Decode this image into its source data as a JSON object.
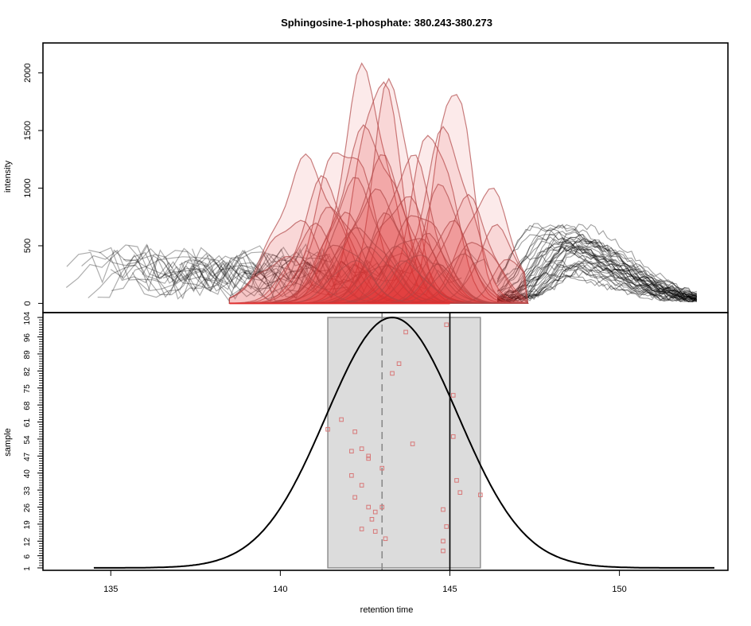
{
  "chart_data": {
    "type": "line",
    "title": "Sphingosine-1-phosphate: 380.243-380.273",
    "xlabel": "retention time",
    "xlim": [
      133,
      153.2
    ],
    "x_ticks": [
      135,
      140,
      145,
      150
    ],
    "top_panel": {
      "type": "area",
      "ylabel": "intensity",
      "ylim": [
        -80,
        2260
      ],
      "y_ticks": [
        0,
        500,
        1000,
        1500,
        2000
      ],
      "colors": {
        "background_traces": "#000000",
        "peak_fill": "#e03030",
        "peak_line": "#b04848"
      },
      "peak_range": [
        138.5,
        147.3
      ],
      "background_noise_level": 250,
      "late_cluster": {
        "center": 148.2,
        "max_intensity": 600,
        "n_traces": 40
      },
      "peak_series_count": 40,
      "peaks": [
        {
          "center": 142.5,
          "max": 2120,
          "width": 0.7
        },
        {
          "center": 142.9,
          "max": 2160,
          "width": 0.6
        },
        {
          "center": 145.1,
          "max": 2150,
          "width": 0.5
        },
        {
          "center": 143.3,
          "max": 2080,
          "width": 0.55
        },
        {
          "center": 144.5,
          "max": 1640,
          "width": 0.6
        },
        {
          "center": 141.9,
          "max": 1510,
          "width": 0.8
        },
        {
          "center": 142.6,
          "max": 1580,
          "width": 0.9
        },
        {
          "center": 144.9,
          "max": 1570,
          "width": 0.7
        },
        {
          "center": 140.8,
          "max": 1300,
          "width": 0.9
        },
        {
          "center": 143.0,
          "max": 1300,
          "width": 0.8
        },
        {
          "center": 143.8,
          "max": 1350,
          "width": 0.7
        },
        {
          "center": 146.1,
          "max": 1050,
          "width": 0.7
        },
        {
          "center": 141.3,
          "max": 1120,
          "width": 0.7
        },
        {
          "center": 142.2,
          "max": 1100,
          "width": 0.8
        },
        {
          "center": 144.8,
          "max": 1080,
          "width": 0.6
        },
        {
          "center": 145.5,
          "max": 950,
          "width": 0.7
        },
        {
          "center": 142.8,
          "max": 1000,
          "width": 0.9
        },
        {
          "center": 143.6,
          "max": 980,
          "width": 0.8
        },
        {
          "center": 141.6,
          "max": 900,
          "width": 0.7
        },
        {
          "center": 144.1,
          "max": 880,
          "width": 0.7
        },
        {
          "center": 140.4,
          "max": 780,
          "width": 0.8
        },
        {
          "center": 142.0,
          "max": 800,
          "width": 0.7
        },
        {
          "center": 143.2,
          "max": 820,
          "width": 0.6
        },
        {
          "center": 145.0,
          "max": 750,
          "width": 0.6
        },
        {
          "center": 146.4,
          "max": 690,
          "width": 0.6
        },
        {
          "center": 141.0,
          "max": 700,
          "width": 0.7
        },
        {
          "center": 142.4,
          "max": 680,
          "width": 0.8
        },
        {
          "center": 143.9,
          "max": 650,
          "width": 0.7
        },
        {
          "center": 144.4,
          "max": 620,
          "width": 0.6
        },
        {
          "center": 145.8,
          "max": 600,
          "width": 0.6
        },
        {
          "center": 141.8,
          "max": 560,
          "width": 0.7
        },
        {
          "center": 142.7,
          "max": 520,
          "width": 0.6
        },
        {
          "center": 143.4,
          "max": 500,
          "width": 0.7
        },
        {
          "center": 144.0,
          "max": 480,
          "width": 0.6
        },
        {
          "center": 145.3,
          "max": 450,
          "width": 0.6
        },
        {
          "center": 140.1,
          "max": 420,
          "width": 0.8
        },
        {
          "center": 146.8,
          "max": 420,
          "width": 0.5
        },
        {
          "center": 142.1,
          "max": 400,
          "width": 0.6
        },
        {
          "center": 143.7,
          "max": 380,
          "width": 0.6
        },
        {
          "center": 144.7,
          "max": 350,
          "width": 0.5
        }
      ]
    },
    "bottom_panel": {
      "type": "scatter",
      "ylabel": "sample",
      "ylim": [
        0,
        106
      ],
      "y_ticks": [
        1,
        6,
        12,
        19,
        26,
        33,
        40,
        47,
        54,
        61,
        68,
        75,
        82,
        89,
        96,
        104
      ],
      "box": {
        "x_range": [
          141.4,
          145.9
        ],
        "y_range": [
          1,
          104
        ]
      },
      "density_curve": {
        "mean": 143.3,
        "sd": 1.95,
        "x_range": [
          134.5,
          152.8
        ],
        "peak_y": 104
      },
      "vline_dashed_x": 143.0,
      "vline_solid_x": 145.0,
      "point_color": "#d87878",
      "points": [
        {
          "x": 144.9,
          "y": 101
        },
        {
          "x": 143.7,
          "y": 98
        },
        {
          "x": 143.5,
          "y": 85
        },
        {
          "x": 143.3,
          "y": 81
        },
        {
          "x": 145.1,
          "y": 72
        },
        {
          "x": 141.8,
          "y": 62
        },
        {
          "x": 141.4,
          "y": 58
        },
        {
          "x": 142.2,
          "y": 57
        },
        {
          "x": 145.1,
          "y": 55
        },
        {
          "x": 143.9,
          "y": 52
        },
        {
          "x": 142.4,
          "y": 50
        },
        {
          "x": 142.1,
          "y": 49
        },
        {
          "x": 142.6,
          "y": 47
        },
        {
          "x": 142.6,
          "y": 46
        },
        {
          "x": 143.0,
          "y": 42
        },
        {
          "x": 142.1,
          "y": 39
        },
        {
          "x": 145.2,
          "y": 37
        },
        {
          "x": 142.4,
          "y": 35
        },
        {
          "x": 145.3,
          "y": 32
        },
        {
          "x": 145.9,
          "y": 31
        },
        {
          "x": 142.2,
          "y": 30
        },
        {
          "x": 142.6,
          "y": 26
        },
        {
          "x": 143.0,
          "y": 26
        },
        {
          "x": 144.8,
          "y": 25
        },
        {
          "x": 142.8,
          "y": 24
        },
        {
          "x": 142.7,
          "y": 21
        },
        {
          "x": 144.9,
          "y": 18
        },
        {
          "x": 142.4,
          "y": 17
        },
        {
          "x": 142.8,
          "y": 16
        },
        {
          "x": 143.1,
          "y": 13
        },
        {
          "x": 144.8,
          "y": 12
        },
        {
          "x": 144.8,
          "y": 8
        }
      ]
    }
  }
}
